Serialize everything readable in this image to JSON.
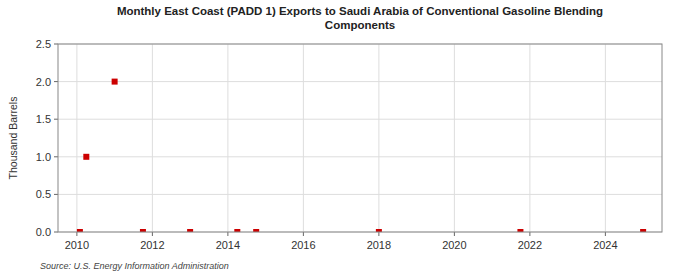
{
  "chart_data": {
    "type": "scatter",
    "title": "Monthly East Coast (PADD 1) Exports to Saudi Arabia of Conventional Gasoline Blending\nComponents",
    "y_label": "Thousand Barrels",
    "annotations": [
      "Source: U.S. Energy Information Administration"
    ],
    "x": [
      2010.25,
      2011.0,
      2010.08,
      2011.75,
      2013.0,
      2014.25,
      2014.75,
      2018.0,
      2021.75,
      2025.0
    ],
    "values": [
      1.0,
      2.0,
      0.0,
      0.0,
      0.0,
      0.0,
      0.0,
      0.0,
      0.0,
      0.0
    ],
    "color": "#cc0000",
    "marker": "square",
    "xlim": [
      2009.5,
      2025.5
    ],
    "ylim": [
      0.0,
      2.5
    ],
    "xticks": [
      2010,
      2012,
      2014,
      2016,
      2018,
      2020,
      2022,
      2024
    ],
    "yticks": [
      {
        "value": 0.0,
        "label": "0.0"
      },
      0.5,
      {
        "value": 1.0,
        "label": "1.0"
      },
      1.5,
      {
        "value": 2.0,
        "label": "2.0"
      },
      2.5
    ],
    "grid": true
  }
}
